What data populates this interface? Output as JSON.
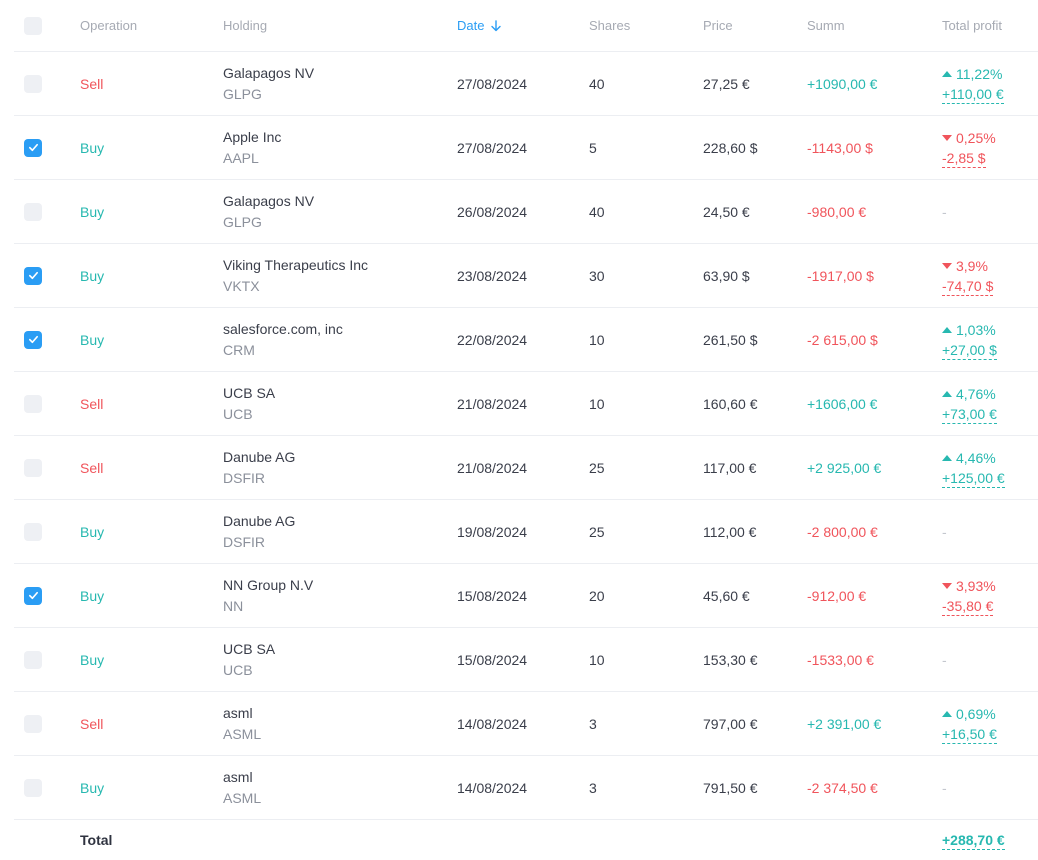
{
  "headers": {
    "operation": "Operation",
    "holding": "Holding",
    "date": "Date",
    "shares": "Shares",
    "price": "Price",
    "summ": "Summ",
    "total_profit": "Total profit"
  },
  "rows": [
    {
      "checked": false,
      "op": "Sell",
      "name": "Galapagos NV",
      "ticker": "GLPG",
      "date": "27/08/2024",
      "shares": "40",
      "price": "27,25 €",
      "summ": "+1090,00 €",
      "summ_sign": "pos",
      "profit_dir": "up",
      "profit_pct": "11,22%",
      "profit_amt": "+110,00 €"
    },
    {
      "checked": true,
      "op": "Buy",
      "name": "Apple Inc",
      "ticker": "AAPL",
      "date": "27/08/2024",
      "shares": "5",
      "price": "228,60 $",
      "summ": "-1143,00 $",
      "summ_sign": "neg",
      "profit_dir": "down",
      "profit_pct": "0,25%",
      "profit_amt": "-2,85 $"
    },
    {
      "checked": false,
      "op": "Buy",
      "name": "Galapagos NV",
      "ticker": "GLPG",
      "date": "26/08/2024",
      "shares": "40",
      "price": "24,50 €",
      "summ": "-980,00 €",
      "summ_sign": "neg",
      "profit_dir": "none",
      "profit_pct": "",
      "profit_amt": "",
      "profit_empty": "-"
    },
    {
      "checked": true,
      "op": "Buy",
      "name": "Viking Therapeutics Inc",
      "ticker": "VKTX",
      "date": "23/08/2024",
      "shares": "30",
      "price": "63,90 $",
      "summ": "-1917,00 $",
      "summ_sign": "neg",
      "profit_dir": "down",
      "profit_pct": "3,9%",
      "profit_amt": "-74,70 $"
    },
    {
      "checked": true,
      "op": "Buy",
      "name": "salesforce.com, inc",
      "ticker": "CRM",
      "date": "22/08/2024",
      "shares": "10",
      "price": "261,50 $",
      "summ": "-2 615,00 $",
      "summ_sign": "neg",
      "profit_dir": "up",
      "profit_pct": "1,03%",
      "profit_amt": "+27,00 $"
    },
    {
      "checked": false,
      "op": "Sell",
      "name": "UCB SA",
      "ticker": "UCB",
      "date": "21/08/2024",
      "shares": "10",
      "price": "160,60 €",
      "summ": "+1606,00 €",
      "summ_sign": "pos",
      "profit_dir": "up",
      "profit_pct": "4,76%",
      "profit_amt": "+73,00 €"
    },
    {
      "checked": false,
      "op": "Sell",
      "name": "Danube AG",
      "ticker": "DSFIR",
      "date": "21/08/2024",
      "shares": "25",
      "price": "117,00 €",
      "summ": "+2 925,00 €",
      "summ_sign": "pos",
      "profit_dir": "up",
      "profit_pct": "4,46%",
      "profit_amt": "+125,00 €"
    },
    {
      "checked": false,
      "op": "Buy",
      "name": "Danube AG",
      "ticker": "DSFIR",
      "date": "19/08/2024",
      "shares": "25",
      "price": "112,00 €",
      "summ": "-2 800,00 €",
      "summ_sign": "neg",
      "profit_dir": "none",
      "profit_pct": "",
      "profit_amt": "",
      "profit_empty": "-"
    },
    {
      "checked": true,
      "op": "Buy",
      "name": "NN Group N.V",
      "ticker": "NN",
      "date": "15/08/2024",
      "shares": "20",
      "price": "45,60 €",
      "summ": "-912,00 €",
      "summ_sign": "neg",
      "profit_dir": "down",
      "profit_pct": "3,93%",
      "profit_amt": "-35,80 €"
    },
    {
      "checked": false,
      "op": "Buy",
      "name": "UCB SA",
      "ticker": "UCB",
      "date": "15/08/2024",
      "shares": "10",
      "price": "153,30 €",
      "summ": "-1533,00 €",
      "summ_sign": "neg",
      "profit_dir": "none",
      "profit_pct": "",
      "profit_amt": "",
      "profit_empty": "-"
    },
    {
      "checked": false,
      "op": "Sell",
      "name": "asml",
      "ticker": "ASML",
      "date": "14/08/2024",
      "shares": "3",
      "price": "797,00 €",
      "summ": "+2 391,00 €",
      "summ_sign": "pos",
      "profit_dir": "up",
      "profit_pct": "0,69%",
      "profit_amt": "+16,50 €"
    },
    {
      "checked": false,
      "op": "Buy",
      "name": "asml",
      "ticker": "ASML",
      "date": "14/08/2024",
      "shares": "3",
      "price": "791,50 €",
      "summ": "-2 374,50 €",
      "summ_sign": "neg",
      "profit_dir": "none",
      "profit_pct": "",
      "profit_amt": "",
      "profit_empty": "-"
    }
  ],
  "total": {
    "label": "Total",
    "value": "+288,70 €"
  },
  "colors": {
    "accent": "#2a9df4",
    "positive": "#27b8b0",
    "negative": "#f0545b"
  }
}
